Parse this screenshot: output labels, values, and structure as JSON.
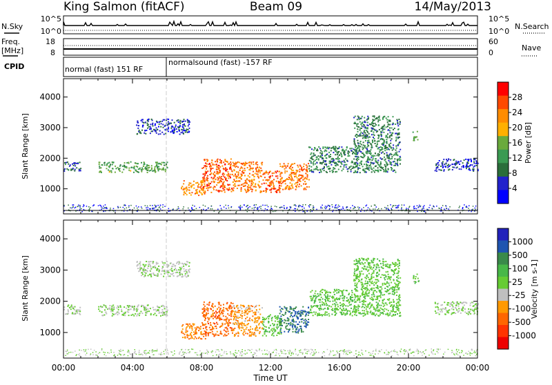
{
  "header": {
    "station": "King Salmon (fitACF)",
    "beam": "Beam 09",
    "date": "14/May/2013"
  },
  "status_panels": {
    "nsky": {
      "label": "N.Sky",
      "top": "10^5",
      "bottom": "10^0"
    },
    "nsearch": {
      "label": "N.Search",
      "top": "10^5",
      "bottom": "10^0"
    },
    "freq": {
      "label_1": "Freq.",
      "label_2": "[MHz]",
      "top": "18",
      "bottom": "8"
    },
    "nave": {
      "label": "Nave",
      "top": "60",
      "bottom": "0"
    },
    "cpid": {
      "label": "CPID",
      "segment_1": "normal (fast) 151 RF",
      "segment_2": "normalsound (fast) -157 RF"
    }
  },
  "x_axis": {
    "label": "Time UT",
    "ticks": [
      "00:00",
      "04:00",
      "08:00",
      "12:00",
      "16:00",
      "20:00",
      "00:00"
    ]
  },
  "colors": {
    "power": [
      "#0000ff",
      "#2222cc",
      "#2a6e3a",
      "#3a9a52",
      "#6aaa3c",
      "#ffb000",
      "#ff8c00",
      "#ff4a00",
      "#ff0000"
    ],
    "velocity": [
      "#2222bb",
      "#1f55b0",
      "#3a8a4a",
      "#48b848",
      "#66cc33",
      "#bfbfbf",
      "#ff9900",
      "#ff6600",
      "#ff3300",
      "#ee0000"
    ]
  },
  "chart_data": [
    {
      "type": "heatmap",
      "title": "Power",
      "ylabel": "Slant Range [km]",
      "xlabel": "",
      "x_range_hours": [
        0,
        24
      ],
      "ylim": [
        180,
        4600
      ],
      "y_ticks": [
        "1000",
        "2000",
        "3000",
        "4000"
      ],
      "colorbar": {
        "label": "Power [dB]",
        "ticks": [
          "4",
          "8",
          "12",
          "16",
          "20",
          "24",
          "28"
        ],
        "range": [
          0,
          32
        ]
      },
      "features": [
        {
          "t_start": 0.0,
          "t_end": 1.0,
          "range_km": [
            1600,
            1900
          ],
          "value": 8
        },
        {
          "t_start": 2.0,
          "t_end": 6.0,
          "range_km": [
            1550,
            1900
          ],
          "value": 14
        },
        {
          "t_start": 4.2,
          "t_end": 7.3,
          "range_km": [
            2800,
            3300
          ],
          "value": 6
        },
        {
          "t_start": 6.8,
          "t_end": 8.2,
          "range_km": [
            800,
            1300
          ],
          "value": 22
        },
        {
          "t_start": 8.0,
          "t_end": 9.8,
          "range_km": [
            900,
            2000
          ],
          "value": 26
        },
        {
          "t_start": 9.8,
          "t_end": 11.5,
          "range_km": [
            900,
            1900
          ],
          "value": 24
        },
        {
          "t_start": 11.5,
          "t_end": 12.6,
          "range_km": [
            900,
            1600
          ],
          "value": 26
        },
        {
          "t_start": 12.5,
          "t_end": 14.2,
          "range_km": [
            1000,
            1850
          ],
          "value": 24
        },
        {
          "t_start": 14.2,
          "t_end": 17.0,
          "range_km": [
            1550,
            2400
          ],
          "value": 10
        },
        {
          "t_start": 16.8,
          "t_end": 19.5,
          "range_km": [
            1550,
            3400
          ],
          "value": 10
        },
        {
          "t_start": 20.2,
          "t_end": 20.6,
          "range_km": [
            2600,
            2900
          ],
          "value": 16
        },
        {
          "t_start": 21.5,
          "t_end": 24.0,
          "range_km": [
            1600,
            2000
          ],
          "value": 6
        }
      ]
    },
    {
      "type": "heatmap",
      "title": "Velocity",
      "ylabel": "Slant Range [km]",
      "xlabel": "Time UT",
      "x_range_hours": [
        0,
        24
      ],
      "ylim": [
        180,
        4600
      ],
      "y_ticks": [
        "1000",
        "2000",
        "3000",
        "4000"
      ],
      "colorbar": {
        "label": "Velocity [m s-1]",
        "ticks": [
          "1000",
          "500",
          "100",
          "25",
          "-25",
          "-100",
          "-500",
          "-1000"
        ],
        "range": [
          -1000,
          1000
        ]
      },
      "features": [
        {
          "t_start": 0.0,
          "t_end": 1.0,
          "range_km": [
            1600,
            1900
          ],
          "value": 0
        },
        {
          "t_start": 2.0,
          "t_end": 6.0,
          "range_km": [
            1550,
            1900
          ],
          "value": 0
        },
        {
          "t_start": 4.2,
          "t_end": 7.3,
          "range_km": [
            2800,
            3300
          ],
          "value": -50
        },
        {
          "t_start": 6.8,
          "t_end": 8.2,
          "range_km": [
            800,
            1300
          ],
          "value": -400
        },
        {
          "t_start": 8.0,
          "t_end": 9.8,
          "range_km": [
            900,
            2000
          ],
          "value": -500
        },
        {
          "t_start": 9.8,
          "t_end": 11.5,
          "range_km": [
            900,
            1900
          ],
          "value": -300
        },
        {
          "t_start": 11.5,
          "t_end": 12.6,
          "range_km": [
            900,
            1600
          ],
          "value": 150
        },
        {
          "t_start": 12.5,
          "t_end": 14.2,
          "range_km": [
            1000,
            1850
          ],
          "value": 600
        },
        {
          "t_start": 14.2,
          "t_end": 17.0,
          "range_km": [
            1550,
            2400
          ],
          "value": 200
        },
        {
          "t_start": 16.8,
          "t_end": 19.5,
          "range_km": [
            1550,
            3400
          ],
          "value": 150
        },
        {
          "t_start": 20.2,
          "t_end": 20.6,
          "range_km": [
            2600,
            2900
          ],
          "value": 100
        },
        {
          "t_start": 21.5,
          "t_end": 24.0,
          "range_km": [
            1600,
            2000
          ],
          "value": 0
        }
      ]
    }
  ]
}
